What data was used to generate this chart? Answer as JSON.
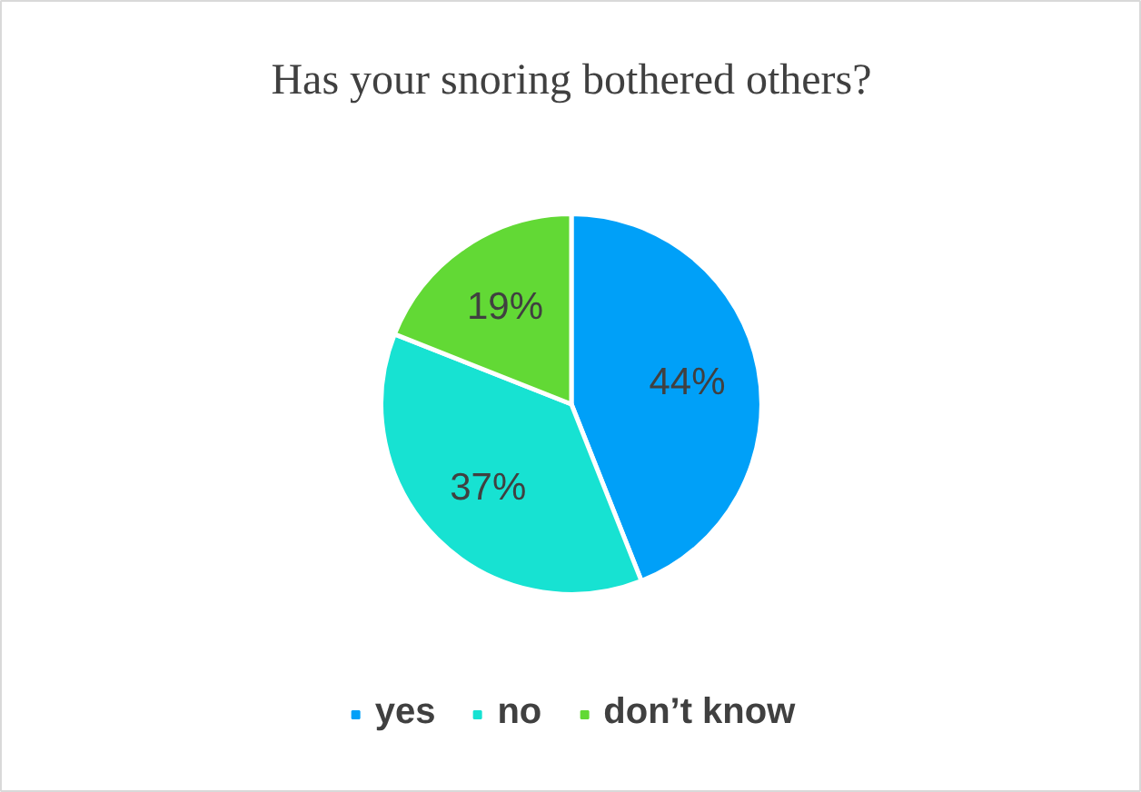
{
  "chart_data": {
    "type": "pie",
    "title": "Has your snoring bothered others?",
    "categories": [
      "yes",
      "no",
      "don’t know"
    ],
    "values": [
      44,
      37,
      19
    ],
    "colors": [
      "#00a0f8",
      "#17e2d2",
      "#62d935"
    ],
    "value_labels": [
      "44%",
      "37%",
      "19%"
    ],
    "legend": "bottom"
  }
}
